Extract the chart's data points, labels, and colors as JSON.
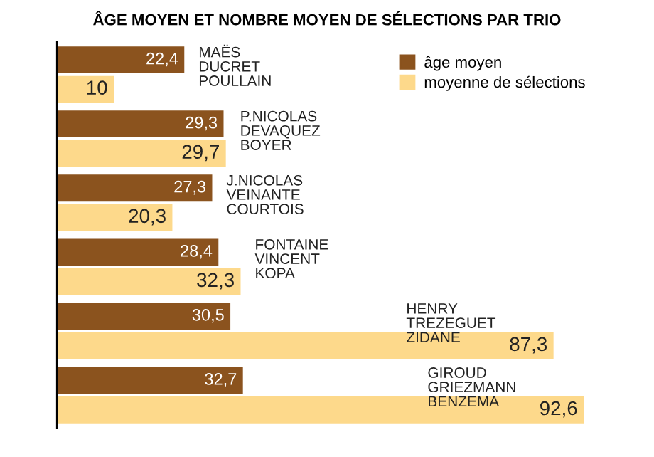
{
  "chart_data": {
    "type": "bar",
    "orientation": "horizontal",
    "title": "ÂGE MOYEN ET NOMBRE MOYEN DE SÉLECTIONS PAR TRIO",
    "categories": [
      "MAËS\nDUCRET\nPOULLAIN",
      "P.NICOLAS\nDEVAQUEZ\nBOYER",
      "J.NICOLAS\nVEINANTE\nCOURTOIS",
      "FONTAINE\nVINCENT\nKOPA",
      "HENRY\nTREZEGUET\nZIDANE",
      "GIROUD\nGRIEZMANN\nBENZEMA"
    ],
    "series": [
      {
        "name": "âge moyen",
        "color": "#8b531e",
        "values": [
          22.4,
          29.3,
          27.3,
          28.4,
          30.5,
          32.7
        ],
        "value_labels": [
          "22,4",
          "29,3",
          "27,3",
          "28,4",
          "30,5",
          "32,7"
        ]
      },
      {
        "name": "moyenne de sélections",
        "color": "#fdd98b",
        "values": [
          10,
          29.7,
          20.3,
          32.3,
          87.3,
          92.6
        ],
        "value_labels": [
          "10",
          "29,7",
          "20,3",
          "32,3",
          "87,3",
          "92,6"
        ]
      }
    ],
    "legend": "top right"
  }
}
